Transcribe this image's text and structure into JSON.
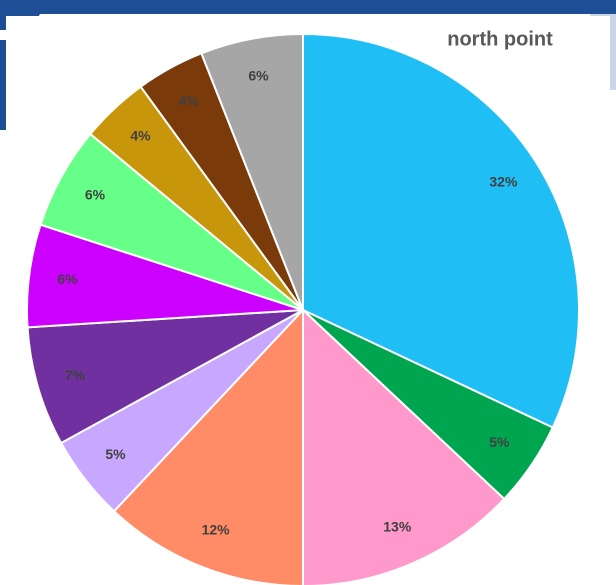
{
  "chart_data": {
    "type": "pie",
    "title": "north point",
    "categories": [
      null,
      null,
      null,
      null,
      null,
      null,
      null,
      null,
      null,
      null,
      null
    ],
    "values": [
      32,
      5,
      13,
      12,
      5,
      7,
      6,
      6,
      4,
      4,
      6
    ],
    "value_labels": [
      "32%",
      "5%",
      "13%",
      "12%",
      "5%",
      "7%",
      "6%",
      "6%",
      "4%",
      "4%",
      "6%"
    ],
    "colors": [
      "#1fbff5",
      "#00a550",
      "#ff99cc",
      "#ff8c66",
      "#c8a8ff",
      "#7030a0",
      "#cc00ff",
      "#66ff88",
      "#c8960a",
      "#7a3a0a",
      "#a6a6a6"
    ]
  }
}
